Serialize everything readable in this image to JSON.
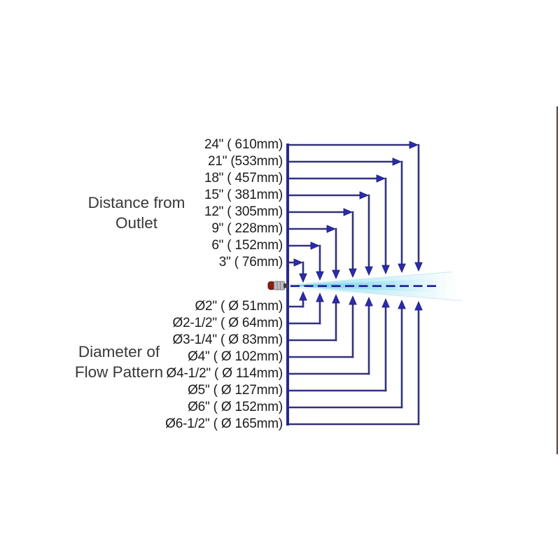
{
  "distance_section": {
    "heading_line1": "Distance from",
    "heading_line2": "Outlet",
    "rows": [
      "24\" ( 610mm)",
      "21\" (533mm)",
      "18\" ( 457mm)",
      "15\" ( 381mm)",
      "12\" ( 305mm)",
      "9\" ( 228mm)",
      "6\" ( 152mm)",
      "3\" ( 76mm)"
    ]
  },
  "diameter_section": {
    "heading_line1": "Diameter of",
    "heading_line2": "Flow Pattern",
    "rows": [
      "Ø2\" ( Ø 51mm)",
      "Ø2-1/2\" ( Ø 64mm)",
      "Ø3-1/4\" ( Ø 83mm)",
      "Ø4\" ( Ø 102mm)",
      "Ø4-1/2\" ( Ø 114mm)",
      "Ø5\" ( Ø 127mm)",
      "Ø6\" ( Ø 152mm)",
      "Ø6-1/2\" ( Ø 165mm)"
    ]
  },
  "colors": {
    "measure_line": "#32327c",
    "arrow_fill": "#2b2bb0",
    "arrow_edge": "#1d1d6e",
    "spine": "#28288c",
    "dash_line": "#23239a",
    "spray_core": "#5fcde8",
    "spray_outer": "#b4e7f3",
    "nozzle_body": "#bcbcc0",
    "nozzle_cap": "#8c1e12",
    "edge_line": "#4c2527",
    "label_text": "#1c1c1c",
    "heading_text": "#383838"
  }
}
